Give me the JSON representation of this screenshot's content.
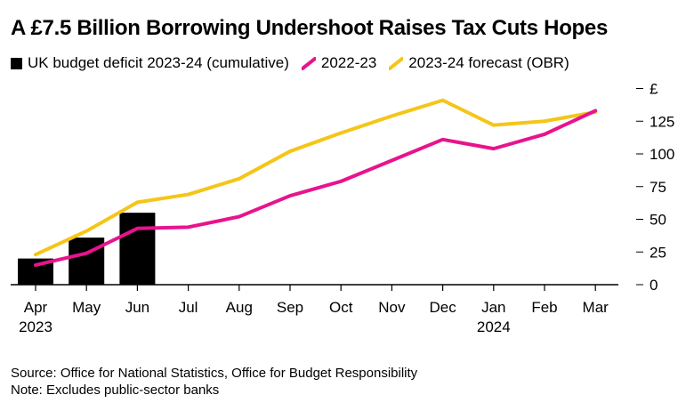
{
  "title": "A £7.5 Billion Borrowing Undershoot Raises Tax Cuts Hopes",
  "footer": {
    "source": "Source: Office for National Statistics, Office for Budget Responsibility",
    "note": "Note: Excludes public-sector banks"
  },
  "colors": {
    "deficit": "#000000",
    "prior_year": "#e8138d",
    "forecast": "#f5c518",
    "grid": "#cccccc",
    "axis": "#000000"
  },
  "chart_data": {
    "type": "bar+line",
    "title": "A £7.5 Billion Borrowing Undershoot Raises Tax Cuts Hopes",
    "y_unit": "£",
    "ylim": [
      0,
      150
    ],
    "yticks": [
      0,
      25,
      50,
      75,
      100,
      125
    ],
    "y_axis_side": "right",
    "categories": [
      "Apr",
      "May",
      "Jun",
      "Jul",
      "Aug",
      "Sep",
      "Oct",
      "Nov",
      "Dec",
      "Jan",
      "Feb",
      "Mar"
    ],
    "year_labels": {
      "Apr": "2023",
      "Jan": "2024"
    },
    "legend_position": "top-left",
    "series": [
      {
        "name": "UK budget deficit 2023-24 (cumulative)",
        "type": "bar",
        "values": [
          20,
          36,
          55,
          null,
          null,
          null,
          null,
          null,
          null,
          null,
          null,
          null
        ]
      },
      {
        "name": "2022-23",
        "type": "line",
        "values": [
          15,
          24,
          43,
          44,
          52,
          68,
          79,
          95,
          111,
          104,
          115,
          133
        ]
      },
      {
        "name": "2023-24 forecast (OBR)",
        "type": "line",
        "values": [
          23,
          41,
          63,
          69,
          81,
          102,
          116,
          129,
          141,
          122,
          125,
          132
        ]
      }
    ]
  }
}
